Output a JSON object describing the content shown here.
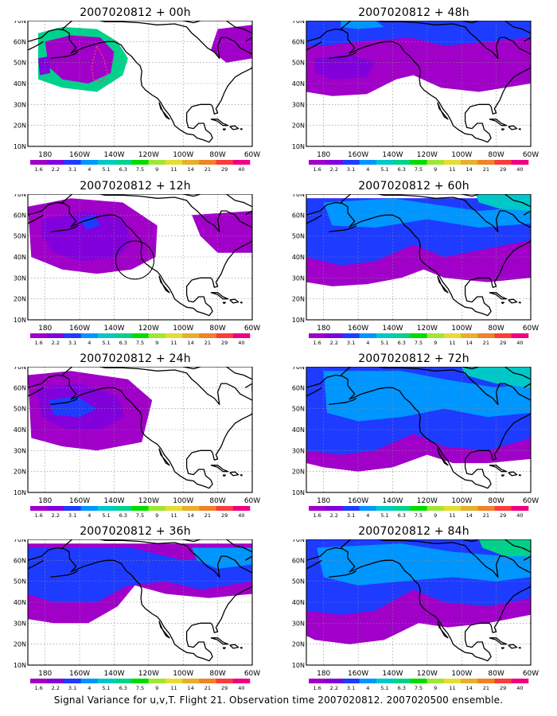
{
  "colorbar": {
    "labels": [
      "1.6",
      "2.2",
      "3.1",
      "4",
      "5.1",
      "6.3",
      "7.5",
      "9",
      "11",
      "14",
      "21",
      "29",
      "40"
    ],
    "colors": [
      "#a000c8",
      "#8200dc",
      "#1e3cff",
      "#0096ff",
      "#00c8c8",
      "#00d28c",
      "#00dc00",
      "#a0e632",
      "#e6dc32",
      "#e6af2d",
      "#f08228",
      "#fa3c3c",
      "#f00082"
    ]
  },
  "axes": {
    "lat_labels": [
      "10N",
      "20N",
      "30N",
      "40N",
      "50N",
      "60N",
      "70N"
    ],
    "lon_labels": [
      "180",
      "160W",
      "140W",
      "120W",
      "100W",
      "80W",
      "60W"
    ]
  },
  "panels": [
    {
      "title": "2007020812 + 00h"
    },
    {
      "title": "2007020812 + 48h"
    },
    {
      "title": "2007020812 + 12h"
    },
    {
      "title": "2007020812 + 60h"
    },
    {
      "title": "2007020812 + 24h"
    },
    {
      "title": "2007020812 + 72h"
    },
    {
      "title": "2007020812 + 36h"
    },
    {
      "title": "2007020812 + 84h"
    }
  ],
  "caption": "Signal Variance for u,v,T. Flight 21. Observation time 2007020812. 2007020500 ensemble."
}
